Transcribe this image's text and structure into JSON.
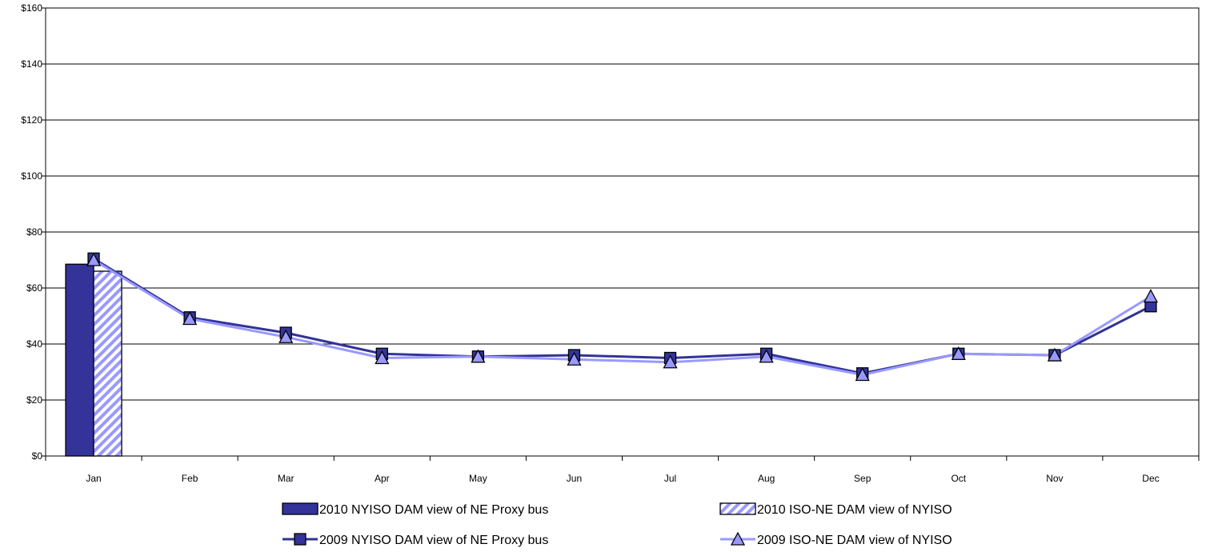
{
  "chart_data": {
    "type": "bar",
    "title": "",
    "xlabel": "",
    "ylabel": "",
    "ylim": [
      0,
      160
    ],
    "y_ticks": [
      0,
      20,
      40,
      60,
      80,
      100,
      120,
      140,
      160
    ],
    "y_tick_labels": [
      "$0",
      "$20",
      "$40",
      "$60",
      "$80",
      "$100",
      "$120",
      "$140",
      "$160"
    ],
    "categories": [
      "Jan",
      "Feb",
      "Mar",
      "Apr",
      "May",
      "Jun",
      "Jul",
      "Aug",
      "Sep",
      "Oct",
      "Nov",
      "Dec"
    ],
    "grid": "horizontal",
    "legend_position": "bottom",
    "bar_series": [
      {
        "name": "2010 NYISO DAM view of NE Proxy bus",
        "values": [
          68.5
        ],
        "color": "#333399",
        "pattern": "solid"
      },
      {
        "name": "2010 ISO-NE DAM view of NYISO",
        "values": [
          66
        ],
        "color": "#9999ff",
        "pattern": "diagonal-hatch"
      }
    ],
    "line_series": [
      {
        "name": "2009 NYISO DAM view of NE Proxy bus",
        "values": [
          70.5,
          49.5,
          44,
          36.5,
          35.5,
          36,
          35,
          36.5,
          29.5,
          36.5,
          36,
          53.5
        ],
        "color": "#333399",
        "marker": "square"
      },
      {
        "name": "2009 ISO-NE DAM view of NYISO",
        "values": [
          70,
          49,
          42.5,
          35,
          35.5,
          34.5,
          33.5,
          35.5,
          29,
          36.5,
          36,
          57
        ],
        "color": "#9999ff",
        "marker": "triangle"
      }
    ]
  }
}
